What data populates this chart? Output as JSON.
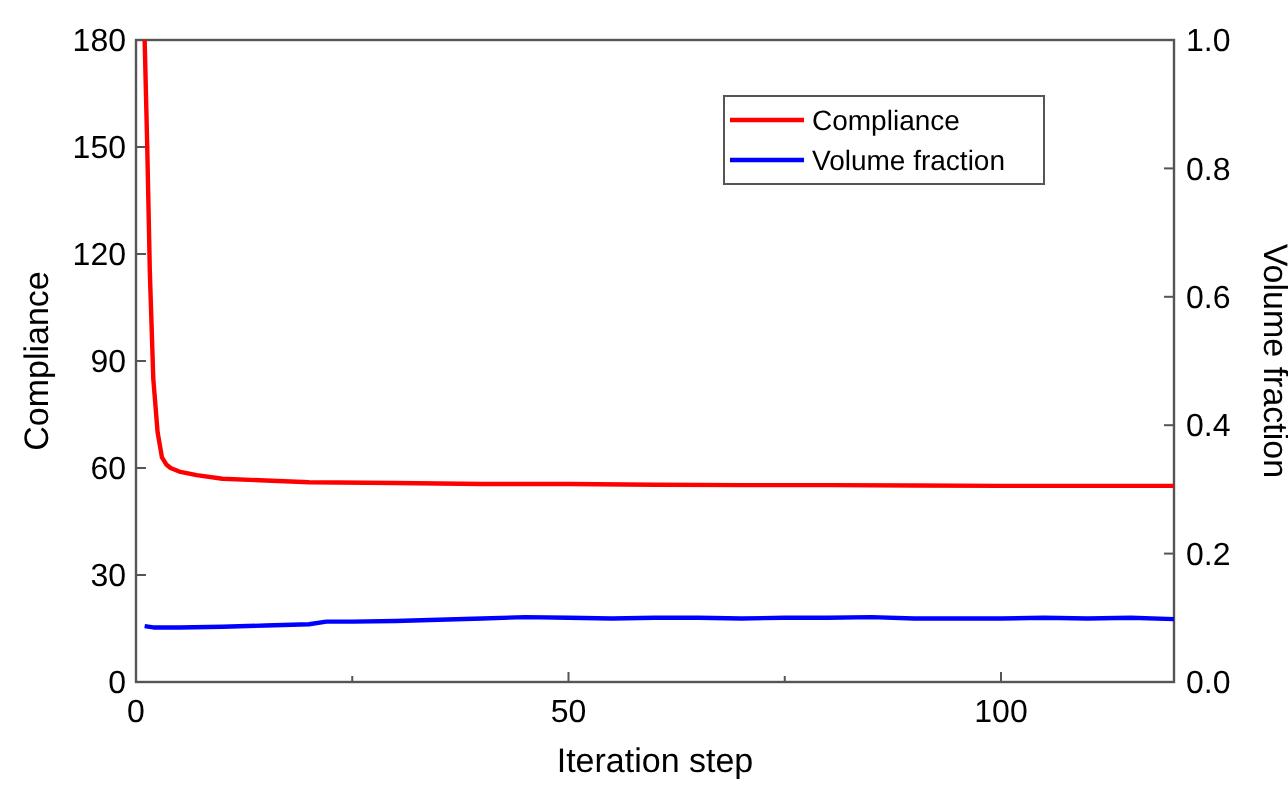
{
  "chart_data": {
    "type": "line",
    "xlabel": "Iteration step",
    "ylabel": "Compliance",
    "y2label": "Volume fraction",
    "xlim": [
      0,
      120
    ],
    "xticks": [
      0,
      {
        "value": 25,
        "label": null
      },
      50,
      {
        "value": 75,
        "label": null
      },
      100
    ],
    "ylim": [
      0,
      180
    ],
    "yticks": [
      0,
      30,
      60,
      90,
      120,
      150,
      180
    ],
    "y2lim": [
      0,
      1
    ],
    "y2ticks": [
      {
        "value": 0,
        "label": "0.0"
      },
      {
        "value": 0.2,
        "label": "0.2"
      },
      {
        "value": 0.4,
        "label": "0.4"
      },
      {
        "value": 0.6,
        "label": "0.6"
      },
      {
        "value": 0.8,
        "label": "0.8"
      },
      {
        "value": 1,
        "label": "1.0"
      }
    ],
    "legend": "top right",
    "grid": false,
    "marker": "none",
    "line_style": "solid",
    "series": [
      {
        "name": "Compliance",
        "color": "#ff0000",
        "x": [
          1,
          1.3,
          1.6,
          2,
          2.5,
          3,
          3.5,
          4,
          5,
          7,
          10,
          15,
          20,
          30,
          40,
          50,
          60,
          70,
          80,
          90,
          100,
          110,
          120
        ],
        "values": [
          180,
          150,
          115,
          85,
          70,
          63,
          61,
          60,
          59,
          58,
          57,
          56.5,
          56,
          55.8,
          55.5,
          55.5,
          55.3,
          55.2,
          55.2,
          55.1,
          55,
          55,
          55
        ]
      },
      {
        "name": "Volume fraction",
        "color": "#0000ff",
        "axis": "y2",
        "x": [
          1,
          2,
          5,
          10,
          15,
          20,
          22,
          25,
          30,
          35,
          40,
          45,
          50,
          55,
          60,
          65,
          70,
          75,
          80,
          85,
          90,
          95,
          100,
          105,
          110,
          115,
          120
        ],
        "values": [
          0.087,
          0.085,
          0.085,
          0.086,
          0.088,
          0.09,
          0.094,
          0.094,
          0.095,
          0.097,
          0.099,
          0.101,
          0.1,
          0.099,
          0.1,
          0.1,
          0.099,
          0.1,
          0.1,
          0.101,
          0.099,
          0.099,
          0.099,
          0.1,
          0.099,
          0.1,
          0.098
        ]
      }
    ]
  }
}
